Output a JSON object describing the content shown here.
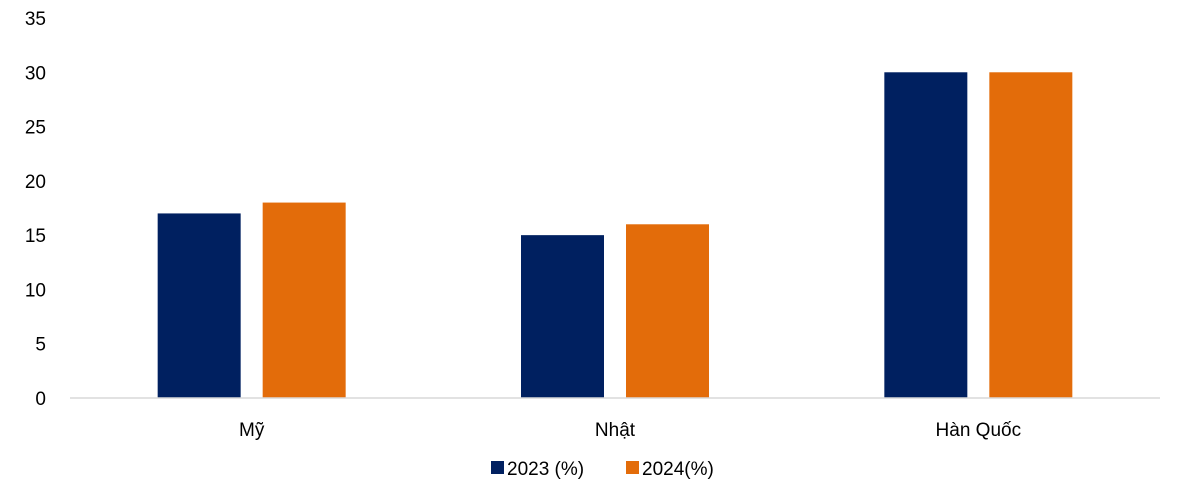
{
  "chart_data": {
    "type": "bar",
    "categories": [
      "Mỹ",
      "Nhật",
      "Hàn Quốc"
    ],
    "series": [
      {
        "name": "2023 (%)",
        "values": [
          17,
          15,
          30
        ],
        "color": "#002060"
      },
      {
        "name": "2024(%)",
        "values": [
          18,
          16,
          30
        ],
        "color": "#E36C0A"
      }
    ],
    "ylim": [
      0,
      35
    ],
    "yticks": [
      "0",
      "5",
      "10",
      "15",
      "20",
      "25",
      "30",
      "35"
    ],
    "grid": false,
    "legend": "bottom-center",
    "axis_color": "#D9D9D9"
  }
}
